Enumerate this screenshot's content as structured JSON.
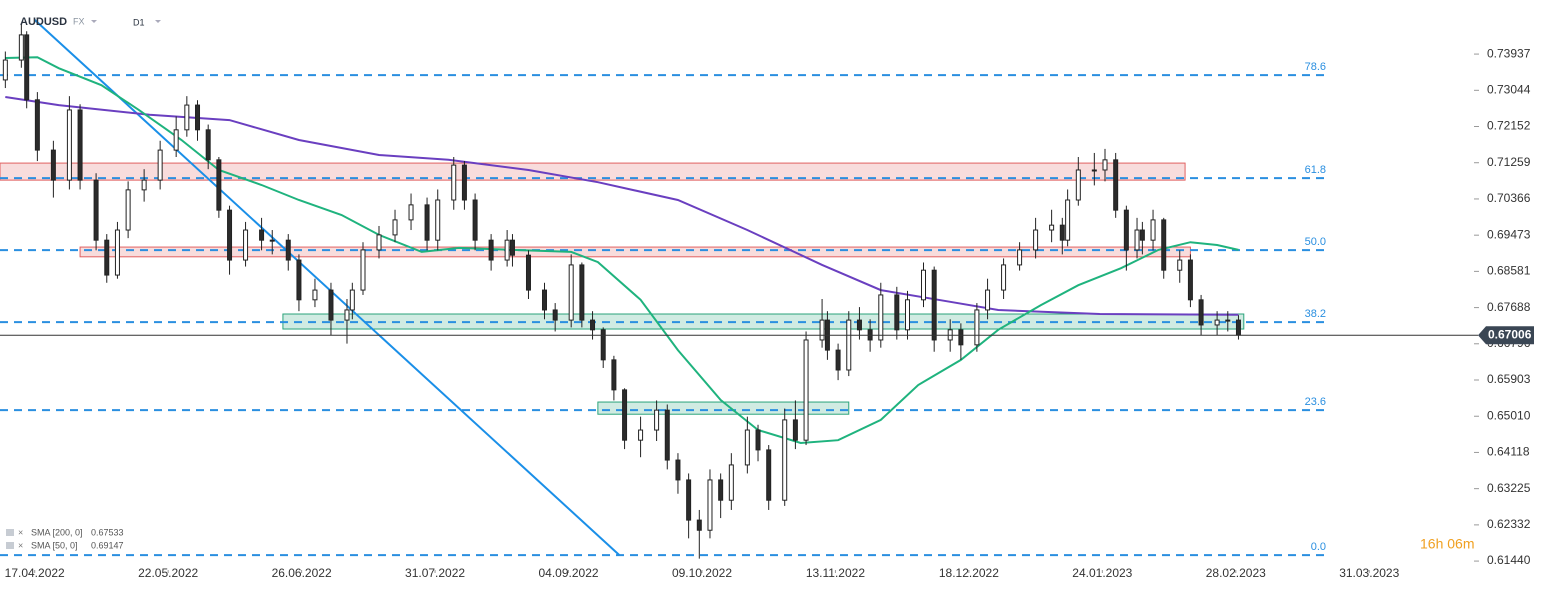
{
  "chart_data": {
    "type": "candlestick",
    "title": "AUDUSD",
    "market": "FX",
    "timeframe": "D1",
    "bull_color": "#ffffff",
    "bear_color": "#2b2b2b",
    "x": [
      1,
      4,
      5,
      7,
      10,
      13,
      15,
      18,
      20,
      22,
      24,
      27,
      30,
      33,
      35,
      37,
      39,
      41,
      43,
      46,
      49,
      51,
      54,
      56,
      59,
      62,
      65,
      66,
      68,
      71,
      74,
      77,
      80,
      82,
      85,
      87,
      89,
      92,
      95,
      96,
      99,
      102,
      104,
      107,
      109,
      111,
      113,
      115,
      117,
      120,
      123,
      125,
      127,
      129,
      131,
      133,
      135,
      137,
      140,
      142,
      144,
      147,
      149,
      151,
      154,
      155,
      157,
      159,
      161,
      163,
      165,
      168,
      170,
      173,
      175,
      178,
      180,
      183,
      185,
      188,
      191,
      194,
      197,
      199,
      200,
      202,
      205,
      207,
      209,
      211,
      213,
      214,
      216,
      218,
      221,
      223,
      225,
      228,
      230,
      232
    ],
    "open": [
      0.733,
      0.7379,
      0.7441,
      0.7281,
      0.7157,
      0.7083,
      0.7256,
      0.7083,
      0.6935,
      0.6849,
      0.696,
      0.7059,
      0.7083,
      0.7157,
      0.7207,
      0.7268,
      0.7207,
      0.7133,
      0.7009,
      0.6886,
      0.696,
      0.6935,
      0.6935,
      0.6886,
      0.6788,
      0.6812,
      0.6738,
      0.6763,
      0.6812,
      0.6911,
      0.6948,
      0.6985,
      0.7022,
      0.6935,
      0.7034,
      0.712,
      0.7034,
      0.6935,
      0.6886,
      0.6935,
      0.6898,
      0.6812,
      0.6763,
      0.6738,
      0.6874,
      0.6738,
      0.6714,
      0.664,
      0.6566,
      0.6442,
      0.6467,
      0.6516,
      0.6393,
      0.6344,
      0.6245,
      0.622,
      0.6344,
      0.6294,
      0.6381,
      0.6467,
      0.6418,
      0.6294,
      0.6492,
      0.6442,
      0.6689,
      0.6738,
      0.6664,
      0.6615,
      0.6738,
      0.6714,
      0.6689,
      0.68,
      0.6714,
      0.6788,
      0.6861,
      0.6689,
      0.6714,
      0.6677,
      0.6763,
      0.6812,
      0.6874,
      0.6911,
      0.696,
      0.6972,
      0.6935,
      0.7034,
      0.7108,
      0.7108,
      0.7133,
      0.7009,
      0.6911,
      0.696,
      0.6935,
      0.6985,
      0.6861,
      0.6886,
      0.6788,
      0.6726,
      0.6738,
      0.6738
    ],
    "high": [
      0.74,
      0.747,
      0.745,
      0.73,
      0.718,
      0.729,
      0.727,
      0.71,
      0.695,
      0.698,
      0.708,
      0.711,
      0.718,
      0.724,
      0.729,
      0.728,
      0.722,
      0.714,
      0.702,
      0.698,
      0.699,
      0.696,
      0.695,
      0.69,
      0.684,
      0.683,
      0.679,
      0.683,
      0.693,
      0.697,
      0.701,
      0.705,
      0.704,
      0.706,
      0.714,
      0.713,
      0.705,
      0.695,
      0.696,
      0.695,
      0.691,
      0.683,
      0.678,
      0.69,
      0.688,
      0.676,
      0.672,
      0.665,
      0.657,
      0.65,
      0.654,
      0.653,
      0.641,
      0.636,
      0.627,
      0.637,
      0.636,
      0.641,
      0.65,
      0.648,
      0.643,
      0.652,
      0.654,
      0.671,
      0.679,
      0.676,
      0.668,
      0.676,
      0.677,
      0.674,
      0.683,
      0.682,
      0.681,
      0.688,
      0.687,
      0.674,
      0.673,
      0.678,
      0.684,
      0.689,
      0.693,
      0.699,
      0.701,
      0.699,
      0.706,
      0.714,
      0.715,
      0.716,
      0.715,
      0.702,
      0.699,
      0.698,
      0.701,
      0.699,
      0.691,
      0.69,
      0.68,
      0.676,
      0.676,
      0.675
    ],
    "low": [
      0.731,
      0.736,
      0.726,
      0.713,
      0.704,
      0.706,
      0.706,
      0.691,
      0.683,
      0.684,
      0.694,
      0.703,
      0.706,
      0.714,
      0.719,
      0.718,
      0.711,
      0.699,
      0.685,
      0.687,
      0.691,
      0.69,
      0.686,
      0.676,
      0.677,
      0.67,
      0.668,
      0.674,
      0.68,
      0.689,
      0.693,
      0.696,
      0.691,
      0.691,
      0.701,
      0.701,
      0.691,
      0.686,
      0.687,
      0.687,
      0.679,
      0.674,
      0.671,
      0.672,
      0.672,
      0.669,
      0.662,
      0.654,
      0.642,
      0.64,
      0.644,
      0.637,
      0.631,
      0.62,
      0.615,
      0.62,
      0.625,
      0.627,
      0.636,
      0.639,
      0.627,
      0.628,
      0.642,
      0.643,
      0.667,
      0.664,
      0.659,
      0.66,
      0.669,
      0.666,
      0.667,
      0.669,
      0.669,
      0.677,
      0.666,
      0.666,
      0.664,
      0.666,
      0.674,
      0.679,
      0.686,
      0.689,
      0.693,
      0.69,
      0.692,
      0.702,
      0.707,
      0.708,
      0.699,
      0.686,
      0.689,
      0.69,
      0.691,
      0.684,
      0.683,
      0.677,
      0.67,
      0.67,
      0.671,
      0.669
    ],
    "close": [
      0.7379,
      0.7441,
      0.7281,
      0.7157,
      0.7083,
      0.7256,
      0.7083,
      0.6935,
      0.6849,
      0.696,
      0.7059,
      0.7083,
      0.7157,
      0.7207,
      0.7268,
      0.7207,
      0.7133,
      0.7009,
      0.6886,
      0.696,
      0.6935,
      0.6935,
      0.6886,
      0.6788,
      0.6812,
      0.6738,
      0.6763,
      0.6812,
      0.6911,
      0.6948,
      0.6985,
      0.7022,
      0.6935,
      0.7034,
      0.712,
      0.7034,
      0.6935,
      0.6886,
      0.6935,
      0.6898,
      0.6812,
      0.6763,
      0.6738,
      0.6874,
      0.6738,
      0.6714,
      0.664,
      0.6566,
      0.6442,
      0.6467,
      0.6516,
      0.6393,
      0.6344,
      0.6245,
      0.622,
      0.6344,
      0.6294,
      0.6381,
      0.6467,
      0.6418,
      0.6294,
      0.6492,
      0.6442,
      0.6689,
      0.6738,
      0.6664,
      0.6615,
      0.6738,
      0.6714,
      0.6689,
      0.68,
      0.6714,
      0.6788,
      0.6861,
      0.6689,
      0.6714,
      0.6677,
      0.6763,
      0.6812,
      0.6874,
      0.6911,
      0.696,
      0.6972,
      0.6935,
      0.7034,
      0.7108,
      0.7108,
      0.7133,
      0.7009,
      0.6911,
      0.696,
      0.6935,
      0.6985,
      0.6861,
      0.6886,
      0.6788,
      0.6726,
      0.6738,
      0.6738,
      0.6701
    ],
    "series": [
      {
        "name": "SMA [200, 0]",
        "legend_value": 0.67533,
        "color": "#6a3fc0",
        "x": [
          1,
          11,
          28,
          43,
          56,
          71,
          84,
          99,
          112,
          127,
          140,
          154,
          165,
          178,
          187,
          206,
          232
        ],
        "values": [
          0.7288,
          0.7268,
          0.7244,
          0.7231,
          0.7182,
          0.7145,
          0.7133,
          0.7108,
          0.7078,
          0.7034,
          0.696,
          0.6874,
          0.6812,
          0.6783,
          0.6763,
          0.6753,
          0.6751
        ]
      },
      {
        "name": "SMA [50, 0]",
        "legend_value": 0.69147,
        "color": "#1fb37e",
        "x": [
          1,
          7,
          11,
          19,
          26,
          34,
          41,
          49,
          56,
          64,
          71,
          79,
          86,
          96,
          107,
          112,
          120,
          127,
          135,
          142,
          150,
          157,
          165,
          172,
          180,
          187,
          195,
          202,
          210,
          217,
          223,
          228,
          232
        ],
        "values": [
          0.7384,
          0.7386,
          0.7359,
          0.7317,
          0.7256,
          0.7182,
          0.7108,
          0.7071,
          0.7034,
          0.6997,
          0.6948,
          0.6906,
          0.6916,
          0.6911,
          0.6906,
          0.6881,
          0.6788,
          0.6664,
          0.6541,
          0.6467,
          0.6435,
          0.6442,
          0.6492,
          0.6578,
          0.664,
          0.6714,
          0.6775,
          0.6824,
          0.6866,
          0.6911,
          0.693,
          0.6923,
          0.6911
        ]
      }
    ],
    "zones": [
      {
        "start": 0,
        "end": 222,
        "top": 0.7125,
        "bottom": 0.7083,
        "color": "#e06060"
      },
      {
        "start": 15,
        "end": 223,
        "top": 0.6918,
        "bottom": 0.6894,
        "color": "#e06060"
      },
      {
        "start": 53,
        "end": 233,
        "top": 0.6753,
        "bottom": 0.6716,
        "color": "#2aa37a"
      },
      {
        "start": 112,
        "end": 159,
        "top": 0.6536,
        "bottom": 0.6506,
        "color": "#2aa37a"
      }
    ],
    "trendline": {
      "x1": 6.5,
      "y1": 0.7478,
      "x2": 116,
      "y2": 0.6159,
      "color": "#1a8fe8"
    },
    "fib_levels": [
      {
        "ratio": 78.6,
        "price": 0.73419
      },
      {
        "ratio": 61.8,
        "price": 0.7088
      },
      {
        "ratio": {
          "value": 50,
          "label": "50.0"
        },
        "price": 0.69106
      },
      {
        "ratio": 38.2,
        "price": 0.67331
      },
      {
        "ratio": 23.6,
        "price": 0.65162
      },
      {
        "ratio": {
          "value": 0,
          "label": "0.0"
        },
        "price": 0.61588
      }
    ],
    "fib_color": "#2a8fe0",
    "current_price": 0.67006,
    "countdown": "16h 06m",
    "xlim": [
      0,
      275
    ],
    "xticks": [
      {
        "value": 6.5,
        "label": "17.04.2022"
      },
      {
        "value": 31.5,
        "label": "22.05.2022"
      },
      {
        "value": 56.5,
        "label": "26.06.2022"
      },
      {
        "value": 81.5,
        "label": "31.07.2022"
      },
      {
        "value": 106.5,
        "label": "04.09.2022"
      },
      {
        "value": 131.5,
        "label": "09.10.2022"
      },
      {
        "value": 156.5,
        "label": "13.11.2022"
      },
      {
        "value": 181.5,
        "label": "18.12.2022"
      },
      {
        "value": 206.5,
        "label": "24.01.2023"
      },
      {
        "value": 231.5,
        "label": "28.02.2023"
      },
      {
        "value": 256.5,
        "label": "31.03.2023"
      }
    ],
    "ylim": [
      0.6122,
      0.7527
    ],
    "yticks": [
      0.73937,
      0.73044,
      0.72152,
      0.71259,
      0.70366,
      0.69473,
      0.68581,
      0.67688,
      0.66796,
      0.65903,
      {
        "value": 0.6501,
        "label": "0.65010"
      },
      0.64118,
      0.63225,
      0.62332,
      {
        "value": 0.6144,
        "label": "0.61440"
      }
    ]
  }
}
